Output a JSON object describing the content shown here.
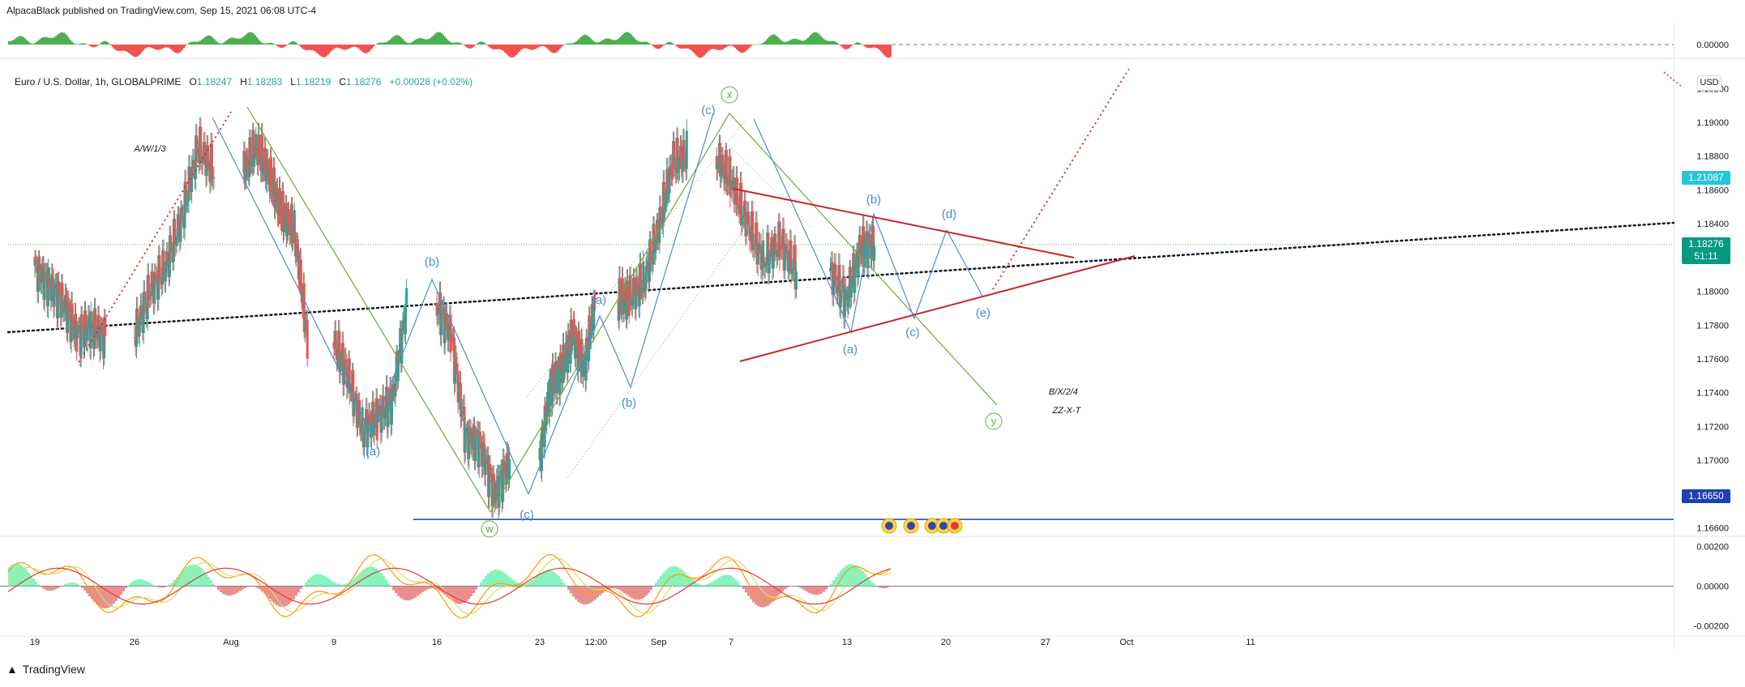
{
  "header": {
    "published_line": "AlpacaBlack published on TradingView.com, Sep 15, 2021 06:08 UTC-4",
    "brand": "TradingView"
  },
  "legend": {
    "symbol": "Euro / U.S. Dollar, 1h, GLOBALPRIME",
    "open_label": "O",
    "open": "1.18247",
    "high_label": "H",
    "high": "1.18283",
    "low_label": "L",
    "low": "1.18219",
    "close_label": "C",
    "close": "1.18276",
    "change": "+0.00028 (+0.02%)"
  },
  "currency_button": "USD",
  "price_tags": {
    "upper": {
      "value": "1.21087",
      "color": "#26c6da"
    },
    "current": {
      "value": "1.18276",
      "countdown": "51:11",
      "color": "#089981"
    },
    "support": {
      "value": "1.16650",
      "color": "#1e3fb5"
    }
  },
  "chart_data": [
    {
      "type": "bar",
      "name": "top-oscillator",
      "ylim": [
        -0.01,
        0.01
      ],
      "y_ticks": [
        "0.00000"
      ],
      "colors": {
        "up": "#4caf50",
        "down": "#ef5350"
      }
    },
    {
      "type": "line",
      "subtype": "candlestick",
      "ylim": [
        1.1655,
        1.1935
      ],
      "y_ticks": [
        "1.19200",
        "1.19000",
        "1.18800",
        "1.18600",
        "1.18400",
        "1.18200",
        "1.18000",
        "1.17800",
        "1.17600",
        "1.17400",
        "1.17200",
        "1.17000",
        "1.16800",
        "1.16600"
      ],
      "x_ticks": [
        "19",
        "26",
        "Aug",
        "9",
        "16",
        "23",
        "12:00",
        "Sep",
        "7",
        "13",
        "20",
        "27",
        "Oct",
        "11"
      ],
      "series": [
        {
          "values": [
            {
              "x": "2021-07-19",
              "close": 1.1805
            },
            {
              "x": "2021-07-20",
              "close": 1.1795
            },
            {
              "x": "2021-07-21",
              "close": 1.1775
            },
            {
              "x": "2021-07-22",
              "close": 1.178
            },
            {
              "x": "2021-07-23",
              "close": 1.1773
            },
            {
              "x": "2021-07-26",
              "close": 1.18
            },
            {
              "x": "2021-07-27",
              "close": 1.1815
            },
            {
              "x": "2021-07-28",
              "close": 1.1843
            },
            {
              "x": "2021-07-29",
              "close": 1.1885
            },
            {
              "x": "2021-07-30",
              "close": 1.187
            },
            {
              "x": "2021-08-02",
              "close": 1.1885
            },
            {
              "x": "2021-08-03",
              "close": 1.1868
            },
            {
              "x": "2021-08-04",
              "close": 1.1845
            },
            {
              "x": "2021-08-05",
              "close": 1.1835
            },
            {
              "x": "2021-08-06",
              "close": 1.177
            },
            {
              "x": "2021-08-09",
              "close": 1.175
            },
            {
              "x": "2021-08-10",
              "close": 1.1718
            },
            {
              "x": "2021-08-11",
              "close": 1.1725
            },
            {
              "x": "2021-08-12",
              "close": 1.1735
            },
            {
              "x": "2021-08-13",
              "close": 1.1793
            },
            {
              "x": "2021-08-16",
              "close": 1.1775
            },
            {
              "x": "2021-08-17",
              "close": 1.1715
            },
            {
              "x": "2021-08-18",
              "close": 1.171
            },
            {
              "x": "2021-08-19",
              "close": 1.168
            },
            {
              "x": "2021-08-20",
              "close": 1.17
            },
            {
              "x": "2021-08-23",
              "close": 1.1745
            },
            {
              "x": "2021-08-24",
              "close": 1.1755
            },
            {
              "x": "2021-08-25",
              "close": 1.1775
            },
            {
              "x": "2021-08-26",
              "close": 1.1755
            },
            {
              "x": "2021-08-27",
              "close": 1.1795
            },
            {
              "x": "2021-08-30",
              "close": 1.1795
            },
            {
              "x": "2021-08-31",
              "close": 1.1805
            },
            {
              "x": "2021-09-01",
              "close": 1.1835
            },
            {
              "x": "2021-09-02",
              "close": 1.1875
            },
            {
              "x": "2021-09-03",
              "close": 1.188
            },
            {
              "x": "2021-09-06",
              "close": 1.1865
            },
            {
              "x": "2021-09-07",
              "close": 1.184
            },
            {
              "x": "2021-09-08",
              "close": 1.1818
            },
            {
              "x": "2021-09-09",
              "close": 1.1828
            },
            {
              "x": "2021-09-10",
              "close": 1.1812
            },
            {
              "x": "2021-09-13",
              "close": 1.1795
            },
            {
              "x": "2021-09-14",
              "close": 1.1826
            },
            {
              "x": "2021-09-15",
              "close": 1.1828
            }
          ]
        }
      ],
      "annotations": {
        "wave_labels": [
          "A/W/1/3",
          "(a)",
          "(b)",
          "(c)",
          "w",
          "(a)",
          "(b)",
          "(c)",
          "x",
          "(a)",
          "(b)",
          "(c)",
          "(d)",
          "(e)",
          "y",
          "B/X/2/4",
          "ZZ-X-T"
        ],
        "support_level": 1.1665,
        "colors": {
          "green_path": "#6aaa3a",
          "blue_path": "#4a8fd1",
          "triangle": "#c62828",
          "support": "#1e3fb5",
          "trend_dots": "#131722"
        }
      }
    },
    {
      "type": "line",
      "name": "bottom-oscillator",
      "ylim": [
        -0.0025,
        0.0025
      ],
      "y_ticks": [
        "0.00200",
        "0.00000",
        "-0.00200"
      ],
      "colors": {
        "fast": "#ff9800",
        "slow": "#d4e157",
        "signal": "#e53935",
        "hist_up": "#69f0ae",
        "hist_down": "#e57373"
      }
    }
  ]
}
